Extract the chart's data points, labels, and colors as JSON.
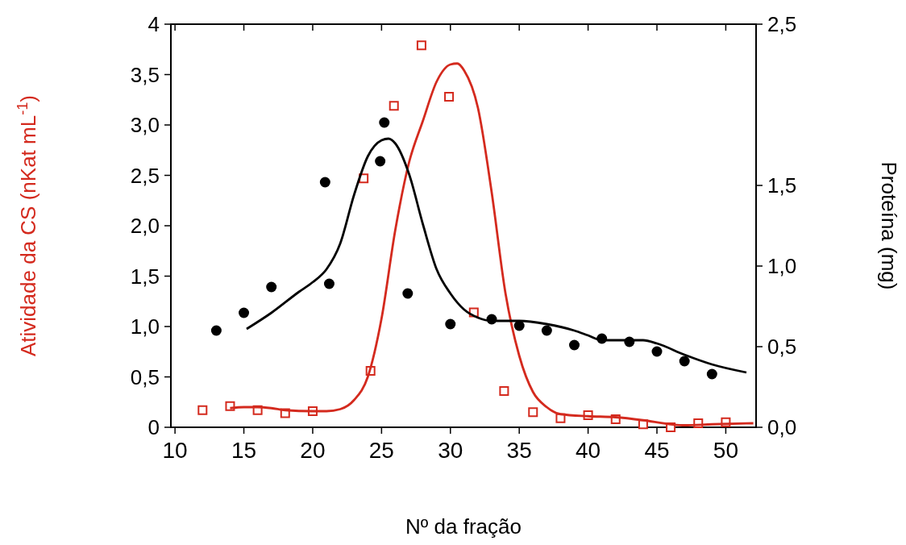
{
  "chart_data": {
    "type": "scatter",
    "xlabel": "Nº da fração",
    "ylabel": "Atividade da CS (nKat mL$^{-1}$)",
    "y2label": "Proteína (mg)",
    "xlim": [
      9.7,
      52.2
    ],
    "xticks": [
      10,
      15,
      20,
      25,
      30,
      35,
      40,
      45,
      50
    ],
    "ylim": [
      0,
      4
    ],
    "yticks": [
      {
        "value": 0,
        "label": "0"
      },
      {
        "value": 0.5,
        "label": "0,5"
      },
      {
        "value": 1,
        "label": "1,0"
      },
      {
        "value": 1.5,
        "label": "1,5"
      },
      {
        "value": 2,
        "label": "2,0"
      },
      {
        "value": 2.5,
        "label": "2,5"
      },
      {
        "value": 3,
        "label": "3,0"
      },
      {
        "value": 3.5,
        "label": "3,5"
      },
      {
        "value": 4,
        "label": "4"
      }
    ],
    "y2lim": [
      0,
      2.5
    ],
    "y2ticks": [
      {
        "value": 0,
        "label": "0,0"
      },
      {
        "value": 0.5,
        "label": "0,5"
      },
      {
        "value": 1,
        "label": "1,0"
      },
      {
        "value": 1.5,
        "label": "1,5"
      },
      {
        "value": 2.5,
        "label": "2,5"
      }
    ],
    "grid": false,
    "series": [
      {
        "marker": "square",
        "color": "#d42a1e",
        "x": [
          12,
          14,
          16,
          18,
          20,
          23.7,
          24.2,
          25.9,
          27.9,
          29.9,
          31.7,
          33.9,
          36,
          38,
          40,
          42,
          44,
          46,
          48,
          50
        ],
        "values": [
          0.17,
          0.21,
          0.17,
          0.14,
          0.16,
          2.47,
          0.56,
          3.19,
          3.79,
          3.28,
          1.14,
          0.36,
          0.15,
          0.09,
          0.12,
          0.08,
          0.03,
          0.0,
          0.04,
          0.05
        ]
      },
      {
        "type": "line",
        "marker": "none",
        "color": "#d42a1e",
        "x": [
          14,
          15,
          16,
          17,
          18,
          20,
          21,
          22,
          23,
          24,
          25,
          26,
          27,
          28,
          29,
          30,
          30.5,
          31,
          32,
          33,
          34,
          35,
          36,
          37,
          38,
          40,
          42,
          44,
          46,
          47,
          49,
          52
        ],
        "values": [
          0.19,
          0.2,
          0.2,
          0.19,
          0.17,
          0.16,
          0.16,
          0.18,
          0.27,
          0.5,
          1.08,
          1.96,
          2.63,
          3.04,
          3.43,
          3.6,
          3.61,
          3.54,
          3.17,
          2.33,
          1.33,
          0.71,
          0.35,
          0.2,
          0.13,
          0.11,
          0.1,
          0.07,
          0.03,
          0.02,
          0.03,
          0.04
        ]
      },
      {
        "marker": "circle",
        "axis": "y2",
        "color": "#000000",
        "x": [
          13,
          15,
          17,
          20.9,
          21.2,
          25.2,
          24.9,
          26.9,
          30,
          33,
          35,
          37,
          39,
          41,
          43,
          45,
          47,
          49
        ],
        "values": [
          0.6,
          0.71,
          0.87,
          1.52,
          0.89,
          1.89,
          1.65,
          0.83,
          0.64,
          0.67,
          0.63,
          0.6,
          0.51,
          0.55,
          0.53,
          0.47,
          0.41,
          0.33
        ]
      },
      {
        "type": "line",
        "marker": "none",
        "axis": "y2",
        "color": "#000000",
        "x": [
          15.2,
          17,
          19,
          20,
          21,
          22,
          23,
          24,
          25,
          25.5,
          26,
          27,
          28,
          29,
          30,
          31,
          32,
          33,
          35,
          37,
          39,
          40,
          41,
          42,
          43,
          44,
          45,
          47,
          49,
          51.5
        ],
        "values": [
          0.61,
          0.71,
          0.84,
          0.9,
          0.98,
          1.14,
          1.44,
          1.68,
          1.78,
          1.79,
          1.76,
          1.57,
          1.26,
          0.98,
          0.83,
          0.73,
          0.68,
          0.66,
          0.66,
          0.64,
          0.6,
          0.57,
          0.54,
          0.54,
          0.54,
          0.54,
          0.52,
          0.45,
          0.39,
          0.34
        ]
      }
    ]
  }
}
